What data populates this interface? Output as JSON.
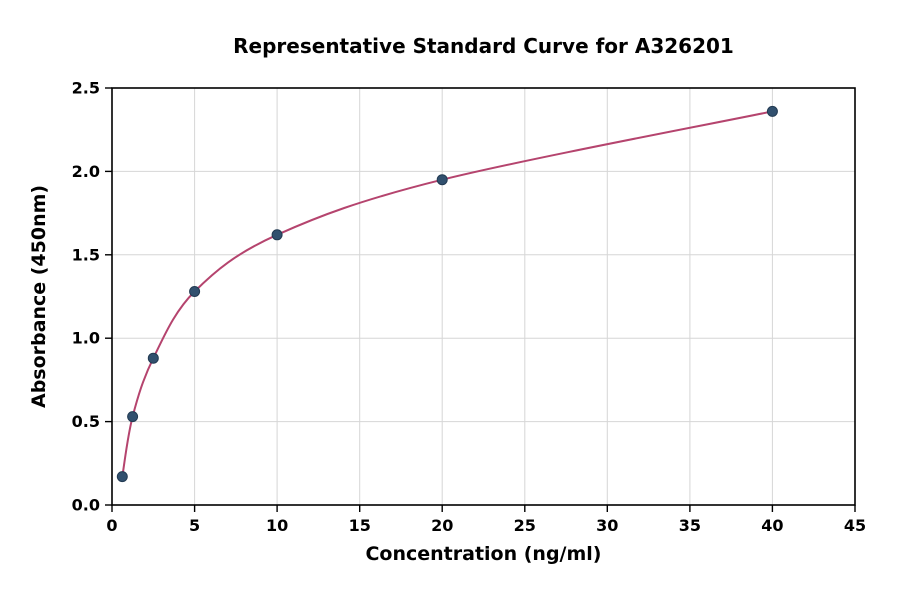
{
  "chart_data": {
    "type": "line",
    "title": "Representative Standard Curve for A326201",
    "xlabel": "Concentration (ng/ml)",
    "ylabel": "Absorbance (450nm)",
    "x": [
      0.625,
      1.25,
      2.5,
      5,
      10,
      20,
      40
    ],
    "y": [
      0.17,
      0.53,
      0.88,
      1.28,
      1.62,
      1.95,
      2.36
    ],
    "xlim": [
      0,
      45
    ],
    "ylim": [
      0,
      2.5
    ],
    "xticks": [
      0,
      5,
      10,
      15,
      20,
      25,
      30,
      35,
      40,
      45
    ],
    "yticks": [
      0,
      0.5,
      1,
      1.5,
      2,
      2.5
    ],
    "ytick_labels": [
      "0.0",
      "0.5",
      "1.0",
      "1.5",
      "2.0",
      "2.5"
    ],
    "grid": true,
    "legend": "none",
    "curve_color": "#b5446e",
    "point_color": "#31506e",
    "point_edge_color": "#223a52",
    "grid_color": "#d6d6d6",
    "axis_color": "#000000",
    "background_color": "#ffffff"
  }
}
